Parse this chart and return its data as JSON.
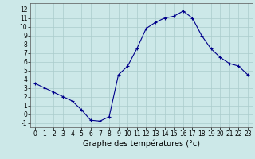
{
  "x": [
    0,
    1,
    2,
    3,
    4,
    5,
    6,
    7,
    8,
    9,
    10,
    11,
    12,
    13,
    14,
    15,
    16,
    17,
    18,
    19,
    20,
    21,
    22,
    23
  ],
  "y": [
    3.5,
    3.0,
    2.5,
    2.0,
    1.5,
    0.5,
    -0.7,
    -0.8,
    -0.3,
    4.5,
    5.5,
    7.5,
    9.8,
    10.5,
    11.0,
    11.2,
    11.8,
    11.0,
    9.0,
    7.5,
    6.5,
    5.8,
    5.5,
    4.5
  ],
  "line_color": "#00008B",
  "marker": "+",
  "marker_size": 3,
  "linewidth": 0.8,
  "background_color": "#cce8e8",
  "grid_color": "#aacccc",
  "xlabel": "Graphe des températures (°c)",
  "xlabel_fontsize": 7,
  "yticks": [
    -1,
    0,
    1,
    2,
    3,
    4,
    5,
    6,
    7,
    8,
    9,
    10,
    11,
    12
  ],
  "xticks": [
    0,
    1,
    2,
    3,
    4,
    5,
    6,
    7,
    8,
    9,
    10,
    11,
    12,
    13,
    14,
    15,
    16,
    17,
    18,
    19,
    20,
    21,
    22,
    23
  ],
  "ylim": [
    -1.5,
    12.7
  ],
  "xlim": [
    -0.5,
    23.5
  ],
  "tick_fontsize": 5.5
}
